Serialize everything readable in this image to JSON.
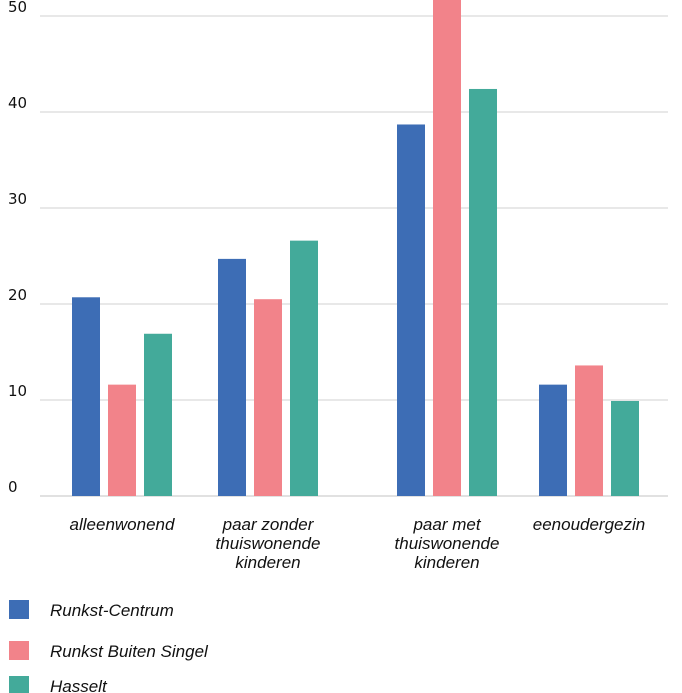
{
  "chart_data": {
    "type": "bar",
    "categories": [
      [
        "alleenwonend"
      ],
      [
        "paar zonder",
        "thuiswonende",
        "kinderen"
      ],
      [
        "paar met",
        "thuiswonende",
        "kinderen"
      ],
      [
        "eenoudergezin"
      ]
    ],
    "series": [
      {
        "name": "Runkst-Centrum",
        "color": "#3d6db5",
        "values": [
          20.7,
          24.7,
          38.7,
          11.6
        ]
      },
      {
        "name": "Runkst Buiten Singel",
        "color": "#f2838a",
        "values": [
          11.6,
          20.5,
          52.5,
          13.6
        ]
      },
      {
        "name": "Hasselt",
        "color": "#43aa9a",
        "values": [
          16.9,
          26.6,
          42.4,
          9.9
        ]
      }
    ],
    "yticks": [
      "0",
      "10",
      "20",
      "30",
      "40",
      "50"
    ],
    "ylim": [
      0,
      52
    ],
    "grid": true,
    "legend_position": "bottom-left"
  }
}
